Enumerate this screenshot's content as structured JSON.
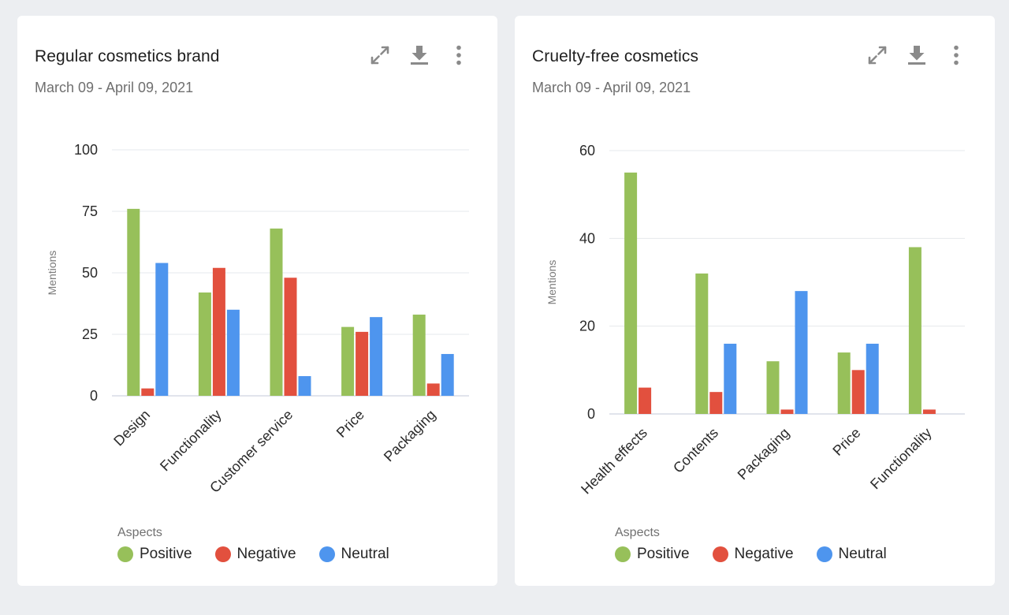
{
  "colors": {
    "positive": "#97c05a",
    "negative": "#e2503e",
    "neutral": "#4e95ee",
    "gridline": "#e6e8ec",
    "baseline": "#cfd3e0",
    "icon": "#8a8a8a"
  },
  "icons": {
    "expand": "expand-icon",
    "download": "download-icon",
    "more": "more-vertical-icon"
  },
  "cards": [
    {
      "title": "Regular cosmetics brand",
      "date_range": "March 09 - April 09, 2021",
      "legend": {
        "title": "Aspects",
        "items": [
          "Positive",
          "Negative",
          "Neutral"
        ]
      }
    },
    {
      "title": "Cruelty-free cosmetics",
      "date_range": "March 09 - April 09, 2021",
      "legend": {
        "title": "Aspects",
        "items": [
          "Positive",
          "Negative",
          "Neutral"
        ]
      }
    }
  ],
  "chart_data": [
    {
      "type": "bar",
      "title": "Regular cosmetics brand",
      "ylabel": "Mentions",
      "ylim": [
        0,
        100
      ],
      "yticks": [
        0,
        25,
        50,
        75,
        100
      ],
      "grid": true,
      "legend_position": "bottom",
      "categories": [
        "Design",
        "Functionality",
        "Customer service",
        "Price",
        "Packaging"
      ],
      "series": [
        {
          "name": "Positive",
          "values": [
            76,
            42,
            68,
            28,
            33
          ]
        },
        {
          "name": "Negative",
          "values": [
            3,
            52,
            48,
            26,
            5
          ]
        },
        {
          "name": "Neutral",
          "values": [
            54,
            35,
            8,
            32,
            17
          ]
        }
      ]
    },
    {
      "type": "bar",
      "title": "Cruelty-free cosmetics",
      "ylabel": "Mentions",
      "ylim": [
        0,
        60
      ],
      "yticks": [
        0,
        20,
        40,
        60
      ],
      "grid": true,
      "legend_position": "bottom",
      "categories": [
        "Health effects",
        "Contents",
        "Packaging",
        "Price",
        "Functionality"
      ],
      "series": [
        {
          "name": "Positive",
          "values": [
            55,
            32,
            12,
            14,
            38
          ]
        },
        {
          "name": "Negative",
          "values": [
            6,
            5,
            1,
            10,
            1
          ]
        },
        {
          "name": "Neutral",
          "values": [
            0,
            16,
            28,
            16,
            0
          ]
        }
      ]
    }
  ]
}
